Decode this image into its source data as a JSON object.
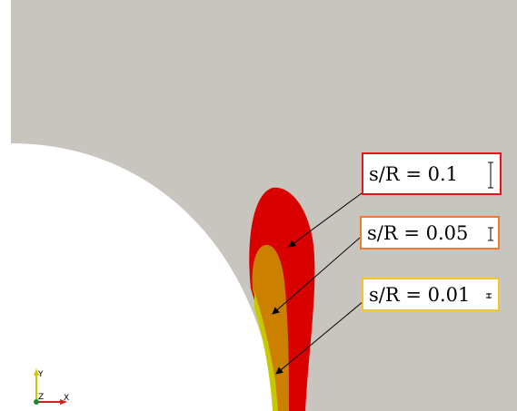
{
  "labels": [
    {
      "text": "s/R = 0.1",
      "border_color": "#e4141b"
    },
    {
      "text": "s/R = 0.05",
      "border_color": "#f07a2a"
    },
    {
      "text": "s/R = 0.01",
      "border_color": "#f2c52e"
    }
  ],
  "axes_triad": {
    "y": "Y",
    "z": "Z",
    "x": "X"
  },
  "colors": {
    "background_gray": "#c8c5bf",
    "hole_white": "#ffffff",
    "zone_red": "#d90000",
    "zone_orange": "#cc8000",
    "zone_yellow": "#c8c800",
    "arrow": "#000000"
  }
}
